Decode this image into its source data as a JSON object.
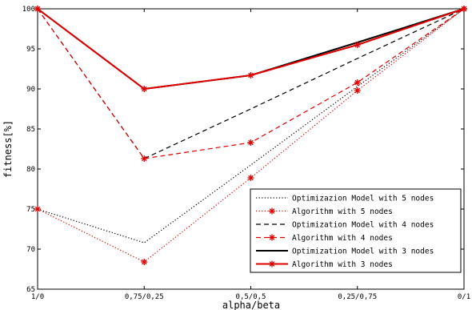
{
  "chart_data": {
    "type": "line",
    "title": "",
    "xlabel": "alpha/beta",
    "ylabel": "fitness[%]",
    "categories": [
      "1/0",
      "0,75/0,25",
      "0,5/0,5",
      "0,25/0,75",
      "0/1"
    ],
    "yticks": [
      65,
      70,
      75,
      80,
      85,
      90,
      95,
      100
    ],
    "ylim": [
      65,
      100
    ],
    "grid": false,
    "legend_position": "bottom-right",
    "series": [
      {
        "name": "Optimizazion Model with 5 nodes",
        "values": [
          75,
          70.8,
          80.5,
          90.3,
          100
        ],
        "color": "#000000",
        "line_style": "dotted",
        "marker": "none"
      },
      {
        "name": "Algorithm with 5 nodes",
        "values": [
          75,
          68.4,
          78.9,
          89.8,
          100
        ],
        "color": "#e00000",
        "line_style": "dotted",
        "marker": "asterisk"
      },
      {
        "name": "Optimization Model with 4 nodes",
        "values": [
          100,
          81.3,
          87.5,
          93.8,
          100
        ],
        "color": "#000000",
        "line_style": "dashed",
        "marker": "none"
      },
      {
        "name": "Algorithm with 4 nodes",
        "values": [
          100,
          81.3,
          83.3,
          90.8,
          100
        ],
        "color": "#e00000",
        "line_style": "dashed",
        "marker": "asterisk"
      },
      {
        "name": "Optimization Model with 3 nodes",
        "values": [
          100,
          90,
          91.7,
          95.8,
          100
        ],
        "color": "#000000",
        "line_style": "solid",
        "marker": "none"
      },
      {
        "name": "Algorithm with 3 nodes",
        "values": [
          100,
          90,
          91.7,
          95.5,
          100
        ],
        "color": "#e00000",
        "line_style": "solid",
        "marker": "asterisk"
      }
    ]
  }
}
